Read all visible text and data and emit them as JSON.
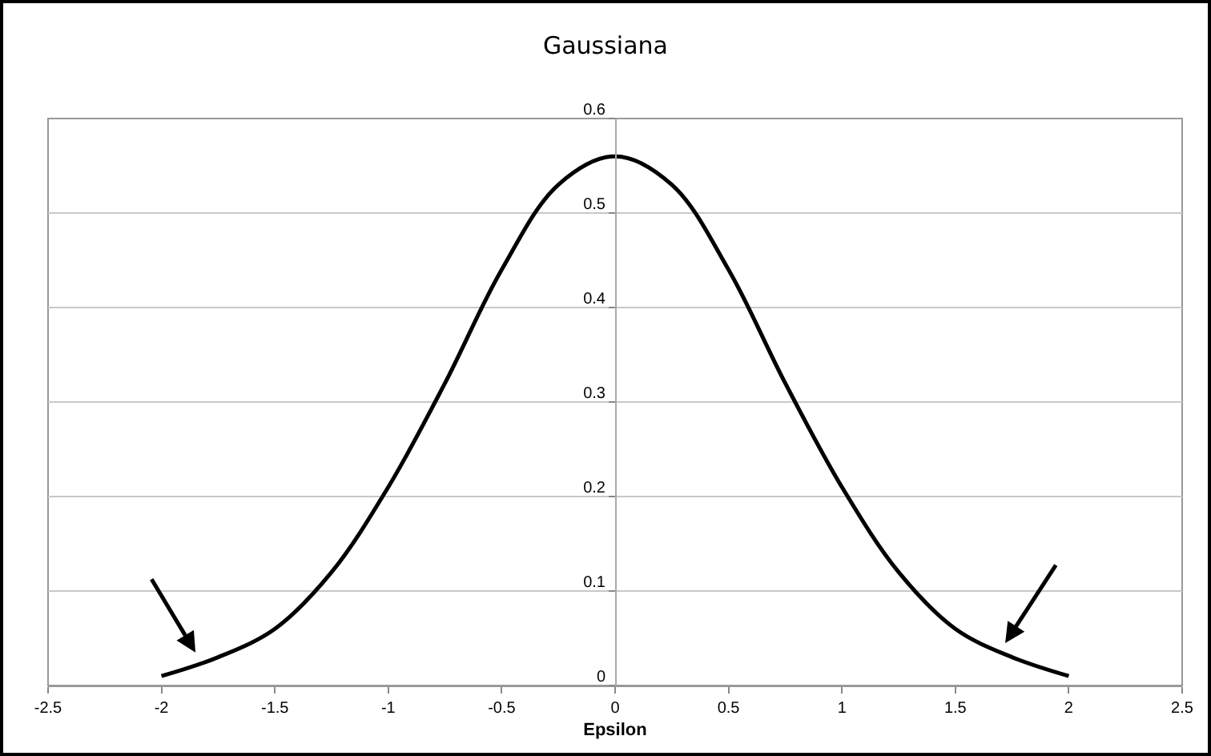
{
  "chart_data": {
    "type": "line",
    "title": "Gaussiana",
    "xlabel": "Epsilon",
    "x": [
      -2,
      -1.75,
      -1.5,
      -1.25,
      -1,
      -0.75,
      -0.5,
      -0.25,
      0,
      0.25,
      0.5,
      0.75,
      1,
      1.25,
      1.5,
      1.75,
      2
    ],
    "series": [
      {
        "color": "#000000",
        "values": [
          0.01,
          0.03,
          0.06,
          0.12,
          0.21,
          0.32,
          0.44,
          0.53,
          0.56,
          0.53,
          0.44,
          0.32,
          0.21,
          0.12,
          0.06,
          0.03,
          0.01
        ]
      }
    ],
    "xlim": [
      -2.5,
      2.5
    ],
    "xticks": [
      -2.5,
      -2,
      -1.5,
      -1,
      -0.5,
      0,
      0.5,
      1,
      1.5,
      2,
      2.5
    ],
    "ylim": [
      0,
      0.6
    ],
    "yticks": [
      0,
      0.1,
      0.2,
      0.3,
      0.4,
      0.5,
      0.6
    ],
    "grid": "y",
    "marker": "none",
    "line_style": "solid"
  }
}
